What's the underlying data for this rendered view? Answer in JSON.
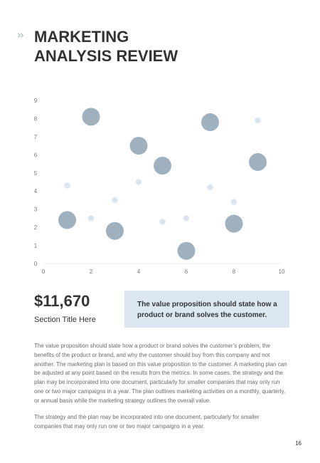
{
  "header": {
    "chevron_icon": "double-chevron-right-icon",
    "title_line1": "MARKETING",
    "title_line2": "ANALYSIS REVIEW"
  },
  "chart_data": {
    "type": "scatter",
    "title": "",
    "xlabel": "",
    "ylabel": "",
    "xlim": [
      0,
      10
    ],
    "ylim": [
      0,
      9
    ],
    "x_ticks": [
      0,
      2,
      4,
      6,
      8,
      10
    ],
    "y_ticks": [
      0,
      1,
      2,
      3,
      4,
      5,
      6,
      7,
      8,
      9
    ],
    "grid": false,
    "series": [
      {
        "color": "#9fb0be",
        "points": [
          {
            "x": 1,
            "y": 2.4
          },
          {
            "x": 2,
            "y": 8.1
          },
          {
            "x": 3,
            "y": 1.8
          },
          {
            "x": 4,
            "y": 6.5
          },
          {
            "x": 5,
            "y": 5.4
          },
          {
            "x": 6,
            "y": 0.7
          },
          {
            "x": 7,
            "y": 7.8
          },
          {
            "x": 8,
            "y": 2.2
          },
          {
            "x": 9,
            "y": 5.6
          }
        ]
      },
      {
        "color": "#dbe5f0",
        "points": [
          {
            "x": 1,
            "y": 4.3
          },
          {
            "x": 2,
            "y": 2.5
          },
          {
            "x": 3,
            "y": 3.5
          },
          {
            "x": 4,
            "y": 4.5
          },
          {
            "x": 5,
            "y": 2.3
          },
          {
            "x": 6,
            "y": 2.5
          },
          {
            "x": 7,
            "y": 4.2
          },
          {
            "x": 8,
            "y": 3.4
          },
          {
            "x": 9,
            "y": 7.9
          }
        ]
      }
    ]
  },
  "stat": {
    "value": "$11,670",
    "label": "Section Title Here"
  },
  "callout": {
    "text": "The value proposition should state how a product or brand solves the customer."
  },
  "body": {
    "paragraph1": "The value proposition should state how a product or brand solves the customer's problem, the benefits of the product or brand, and why the customer should buy from this company and not another. The marketing plan is based on this value proposition to the customer. A marketing plan can be adjusted at any point based on the results from the metrics. In some cases, the strategy and the plan may be incorporated into one document, particularly for smaller companies that may only run one or two major campaigns in a year. The plan outlines marketing activities on a monthly, quarterly, or annual basis while the marketing strategy outlines the overall value.",
    "paragraph2": "The strategy and the plan may be incorporated into one document, particularly for smaller companies that may only run one or two major campaigns in a year."
  },
  "footer": {
    "page_number": "16"
  }
}
